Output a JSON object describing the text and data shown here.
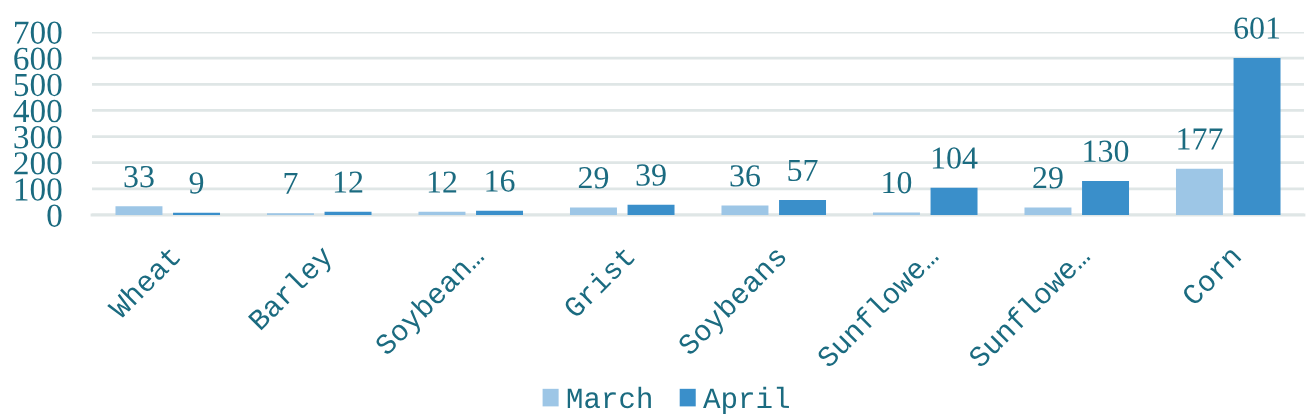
{
  "chart_data": {
    "type": "bar",
    "categories": [
      "Wheat",
      "Barley",
      "Soybean…",
      "Grist",
      "Soybeans",
      "Sunflowe…",
      "Sunflowe…",
      "Corn"
    ],
    "series": [
      {
        "name": "March",
        "color": "#9dc6e6",
        "values": [
          33,
          7,
          12,
          29,
          36,
          10,
          29,
          177
        ]
      },
      {
        "name": "April",
        "color": "#3a8fca",
        "values": [
          9,
          12,
          16,
          39,
          57,
          104,
          130,
          601
        ]
      }
    ],
    "ylim": [
      0,
      700
    ],
    "yticks": [
      0,
      100,
      200,
      300,
      400,
      500,
      600,
      700
    ],
    "grid": "y",
    "legend": "bottom",
    "data_labels": true
  }
}
